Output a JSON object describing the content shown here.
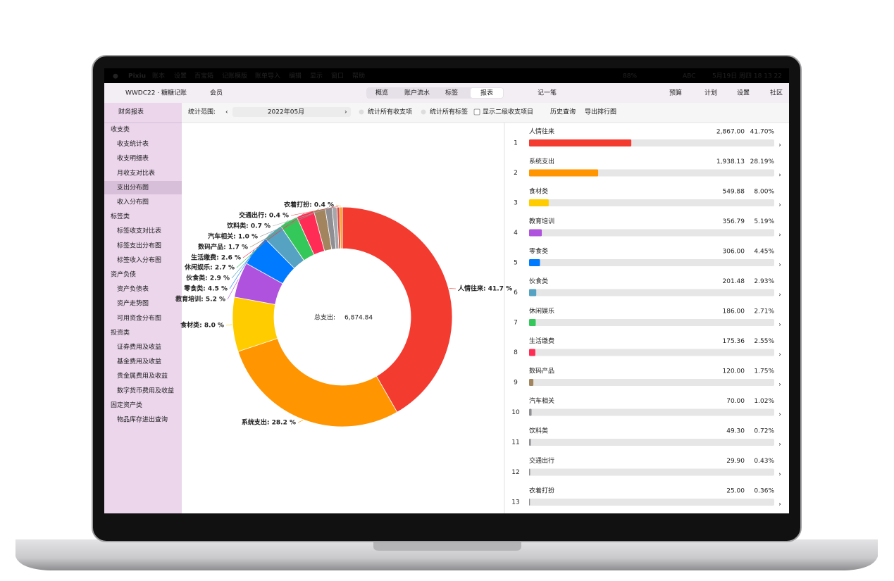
{
  "menubar": {
    "app": "Pixiu",
    "menus": [
      "账本",
      "设置",
      "百宝箱",
      "记账模版",
      "账单导入",
      "编辑",
      "显示",
      "窗口",
      "帮助"
    ],
    "battery": "88%",
    "input": "ABC",
    "clock": "5月19日 周四 18 13 22"
  },
  "toolbar": {
    "book": "WWDC22 · 糖糖记账",
    "member": "会员",
    "tabs": [
      "概览",
      "账户流水",
      "标签",
      "报表"
    ],
    "record": "记一笔",
    "actions": [
      "预算",
      "计划",
      "设置",
      "社区"
    ]
  },
  "sidebar": {
    "title": "财务报表",
    "groups": [
      {
        "name": "收支类",
        "items": [
          "收支统计表",
          "收支明细表",
          "月收支对比表",
          "支出分布图",
          "收入分布图"
        ]
      },
      {
        "name": "标签类",
        "items": [
          "标签收支对比表",
          "标签支出分布图",
          "标签收入分布图"
        ]
      },
      {
        "name": "资产负债",
        "items": [
          "资产负债表",
          "资产走势图",
          "可用资金分布图"
        ]
      },
      {
        "name": "投资类",
        "items": [
          "证券费用及收益",
          "基金费用及收益",
          "贵金属费用及收益",
          "数字货币费用及收益"
        ]
      },
      {
        "name": "固定资产类",
        "items": [
          "物品库存进出查询"
        ]
      }
    ]
  },
  "filter": {
    "label": "统计范围:",
    "period": "2022年05月",
    "options": [
      "统计所有收支项",
      "统计所有标签",
      "显示二级收支项目"
    ],
    "buttons": [
      "历史查询",
      "导出排行图"
    ]
  },
  "chart_data": [
    {
      "type": "donut",
      "center_text": "总支出:",
      "total": "6,874.84",
      "categories": [
        "人情往来",
        "系统支出",
        "食材类",
        "教育培训",
        "零食类",
        "伙食类",
        "休闲娱乐",
        "生活缴费",
        "数码产品",
        "汽车相关",
        "饮料类",
        "交通出行",
        "衣着打扮"
      ],
      "values": [
        41.7,
        28.2,
        8.0,
        5.2,
        4.5,
        2.9,
        2.7,
        2.6,
        1.7,
        1.0,
        0.7,
        0.4,
        0.4
      ],
      "value_labels": [
        "人情往来: 41.7 %",
        "系统支出: 28.2 %",
        "食材类: 8.0 %",
        "教育培训: 5.2 %",
        "零食类: 4.5 %",
        "伙食类: 2.9 %",
        "休闲娱乐: 2.7 %",
        "生活缴费: 2.6 %",
        "数码产品: 1.7 %",
        "汽车相关: 1.0 %",
        "饮料类: 0.7 %",
        "交通出行: 0.4 %",
        "衣着打扮: 0.4 %"
      ],
      "colors": [
        "#f43b30",
        "#ff9500",
        "#ffcc00",
        "#af52de",
        "#007aff",
        "#55a2c2",
        "#34c759",
        "#ff2d55",
        "#a2845e",
        "#8e8e93",
        "#a7a7ab",
        "#e8473e",
        "#f0a030"
      ]
    },
    {
      "type": "bar",
      "orientation": "horizontal",
      "ranks": [
        1,
        2,
        3,
        4,
        5,
        6,
        7,
        8,
        9,
        10,
        11,
        12,
        13
      ],
      "categories": [
        "人情往来",
        "系统支出",
        "食材类",
        "教育培训",
        "零食类",
        "伙食类",
        "休闲娱乐",
        "生活缴费",
        "数码产品",
        "汽车相关",
        "饮料类",
        "交通出行",
        "衣着打扮"
      ],
      "amounts": [
        "2,867.00",
        "1,938.13",
        "549.88",
        "356.79",
        "306.00",
        "201.48",
        "186.00",
        "175.36",
        "120.00",
        "70.00",
        "49.30",
        "29.90",
        "25.00"
      ],
      "values": [
        41.7,
        28.19,
        8.0,
        5.19,
        4.45,
        2.93,
        2.71,
        2.55,
        1.75,
        1.02,
        0.72,
        0.43,
        0.36
      ],
      "value_labels": [
        "41.70%",
        "28.19%",
        "8.00%",
        "5.19%",
        "4.45%",
        "2.93%",
        "2.71%",
        "2.55%",
        "1.75%",
        "1.02%",
        "0.72%",
        "0.43%",
        "0.36%"
      ],
      "colors": [
        "#f43b30",
        "#ff9500",
        "#ffcc00",
        "#af52de",
        "#007aff",
        "#55a2c2",
        "#34c759",
        "#ff2d55",
        "#a2845e",
        "#8e8e93",
        "#8e8e93",
        "#8e8e93",
        "#8e8e93"
      ],
      "xlim": [
        0,
        100
      ]
    }
  ]
}
